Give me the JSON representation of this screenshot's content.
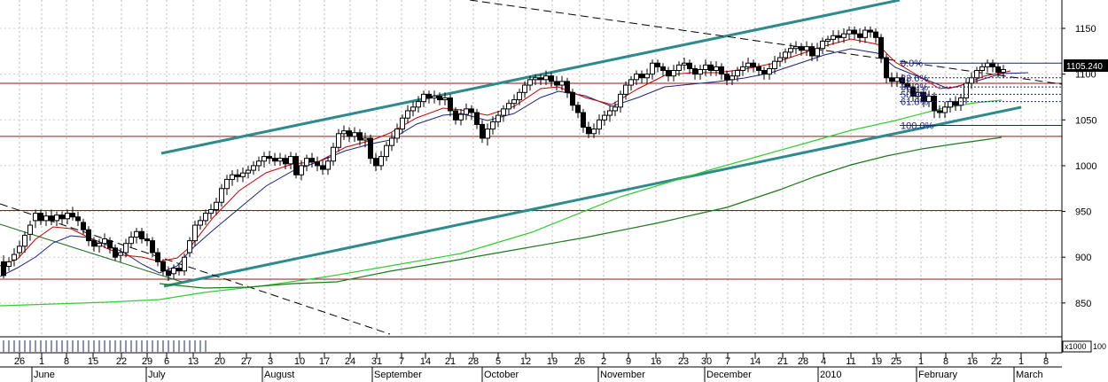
{
  "chart_data": {
    "type": "candlestick",
    "ylim": [
      825,
      1175
    ],
    "y_ticks": [
      850,
      900,
      950,
      1000,
      1050,
      1100,
      1150
    ],
    "last_price_label": "1105.240",
    "volume_unit_label": "x1000",
    "volume_axis_tick": "100",
    "x_day_ticks": [
      "26",
      "1",
      "8",
      "15",
      "22",
      "29",
      "6",
      "13",
      "20",
      "27",
      "3",
      "10",
      "17",
      "24",
      "31",
      "7",
      "14",
      "21",
      "28",
      "5",
      "12",
      "19",
      "26",
      "2",
      "9",
      "16",
      "23",
      "30",
      "7",
      "14",
      "21",
      "28",
      "4",
      "11",
      "19",
      "25",
      "1",
      "8",
      "16",
      "22",
      "1",
      "8"
    ],
    "x_month_labels": [
      "June",
      "July",
      "August",
      "September",
      "October",
      "November",
      "December",
      "2010",
      "February",
      "March"
    ],
    "horizontal_levels": [
      1090,
      1032,
      951,
      876
    ],
    "fibonacci": {
      "high": 1112,
      "low": 1044,
      "levels": [
        {
          "label": "0.0%",
          "value": 1112
        },
        {
          "label": "23.6%",
          "value": 1096
        },
        {
          "label": "38.2%",
          "value": 1086
        },
        {
          "label": "50.0%",
          "value": 1078
        },
        {
          "label": "61.8%",
          "value": 1070
        },
        {
          "label": "100.0%",
          "value": 1044
        }
      ]
    },
    "colors": {
      "channel": "#2e8b8b",
      "ma_fast": "#cc0000",
      "ma_mid": "#1a237e",
      "ma_slow_light": "#33cc33",
      "ma_slow_dark": "#1b7a1b",
      "levels": "#8b1a1a",
      "fib": "#1a237e",
      "price_tag_bg": "#000000"
    }
  }
}
